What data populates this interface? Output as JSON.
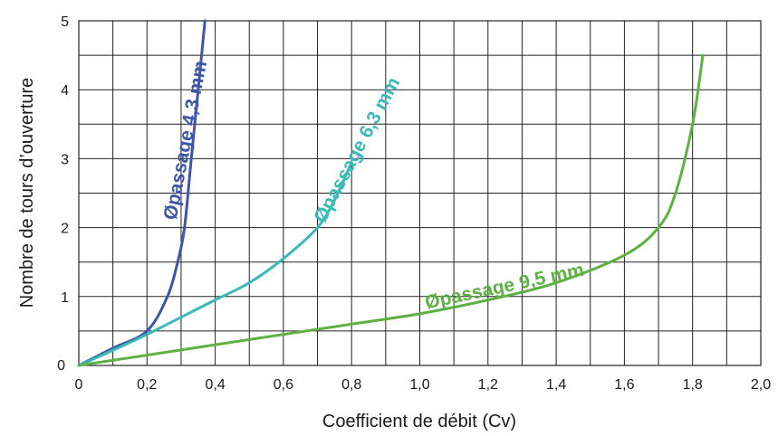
{
  "chart_data": {
    "type": "line",
    "xlabel": "Coefficient de débit (Cv)",
    "ylabel": "Nombre de tours d’ouverture",
    "xlim": [
      0,
      2.0
    ],
    "ylim": [
      0,
      5
    ],
    "x_ticks": [
      "0",
      "0,2",
      "0,4",
      "0,6",
      "0,8",
      "1,0",
      "1,2",
      "1,4",
      "1,6",
      "1,8",
      "2,0"
    ],
    "y_ticks": [
      "1",
      "2",
      "3",
      "4",
      "5"
    ],
    "grid": true,
    "legend": "inline labels on curves",
    "series": [
      {
        "name": "Øpassage 4,3 mm",
        "color": "#3d56a8",
        "x": [
          0,
          0.1,
          0.2,
          0.26,
          0.29,
          0.31,
          0.33,
          0.35,
          0.37
        ],
        "y": [
          0,
          0.25,
          0.5,
          1.0,
          1.5,
          2.0,
          3.0,
          4.0,
          5.0
        ]
      },
      {
        "name": "Øpassage 6,3 mm",
        "color": "#3bb8b8",
        "x": [
          0,
          0.1,
          0.2,
          0.3,
          0.4,
          0.5,
          0.6,
          0.7,
          0.75,
          0.8
        ],
        "y": [
          0,
          0.22,
          0.45,
          0.7,
          0.95,
          1.2,
          1.55,
          2.0,
          2.4,
          2.95
        ]
      },
      {
        "name": "Øpassage 9,5 mm",
        "color": "#5db143",
        "x": [
          0,
          0.2,
          0.4,
          0.6,
          0.8,
          1.0,
          1.2,
          1.4,
          1.6,
          1.7,
          1.75,
          1.8,
          1.83
        ],
        "y": [
          0,
          0.15,
          0.3,
          0.45,
          0.6,
          0.75,
          0.95,
          1.2,
          1.6,
          2.0,
          2.5,
          3.5,
          4.5
        ]
      }
    ]
  }
}
